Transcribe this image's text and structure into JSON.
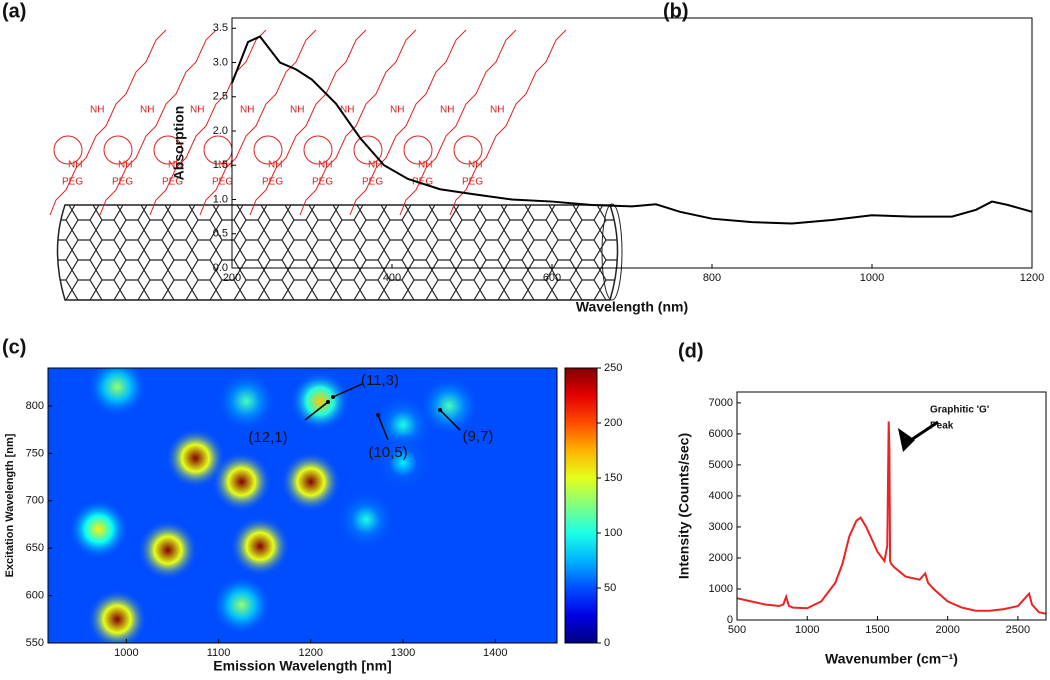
{
  "panel_labels": [
    "(a)",
    "(b)",
    "(c)",
    "(d)"
  ],
  "diagram": {
    "group_labels": [
      "NH",
      "PEG"
    ]
  },
  "chart_data": [
    {
      "type": "line",
      "x_label": "Wavelength (nm)",
      "y_label": "Absorption",
      "color": "#000000",
      "x": [
        200,
        220,
        235,
        260,
        280,
        300,
        330,
        360,
        390,
        420,
        460,
        500,
        550,
        600,
        650,
        700,
        730,
        760,
        800,
        850,
        900,
        950,
        1000,
        1050,
        1100,
        1130,
        1150,
        1170,
        1200
      ],
      "values": [
        2.7,
        3.3,
        3.38,
        3.0,
        2.9,
        2.75,
        2.4,
        1.9,
        1.5,
        1.3,
        1.15,
        1.08,
        1.0,
        0.97,
        0.92,
        0.9,
        0.93,
        0.82,
        0.72,
        0.67,
        0.65,
        0.7,
        0.77,
        0.75,
        0.75,
        0.85,
        0.97,
        0.92,
        0.82
      ],
      "xlim": [
        200,
        1200
      ],
      "xticks": [
        200,
        400,
        600,
        800,
        1000,
        1200
      ],
      "ylim": [
        0,
        3.65
      ],
      "yticks": [
        {
          "value": 0,
          "label": "0.0"
        },
        {
          "value": 0.5,
          "label": "0.5"
        },
        {
          "value": 1,
          "label": "1.0"
        },
        {
          "value": 1.5,
          "label": "1.5"
        },
        {
          "value": 2,
          "label": "2.0"
        },
        {
          "value": 2.5,
          "label": "2.5"
        },
        {
          "value": 3,
          "label": "3.0"
        },
        {
          "value": 3.5,
          "label": "3.5"
        }
      ]
    },
    {
      "type": "heatmap",
      "x_label": "Emission Wavelength [nm]",
      "y_label": "Excitation Wavelength [nm]",
      "x": [
        990,
        1045,
        1075,
        1125,
        1145,
        1200,
        1210,
        1125,
        970,
        990,
        1300,
        1350,
        1260,
        1130,
        1300
      ],
      "y": [
        575,
        648,
        745,
        720,
        652,
        720,
        805,
        590,
        670,
        820,
        780,
        800,
        680,
        805,
        740
      ],
      "values": [
        250,
        250,
        250,
        250,
        250,
        250,
        170,
        130,
        160,
        130,
        100,
        110,
        100,
        110,
        90
      ],
      "xlim": [
        915,
        1467
      ],
      "xticks": [
        1000,
        1100,
        1200,
        1300,
        1400
      ],
      "ylim": [
        550,
        840
      ],
      "yticks": [
        550,
        600,
        650,
        700,
        750,
        800
      ],
      "clim": [
        0,
        250
      ],
      "cticks": [
        0,
        50,
        100,
        150,
        200,
        250
      ],
      "annotations": [
        "(12,1)",
        "(11,3)",
        "(10,5)",
        "(9,7)"
      ]
    },
    {
      "type": "line",
      "x_label": "Wavenumber (cm⁻¹)",
      "y_label": "Intensity (Counts/sec)",
      "color": "#ee2222",
      "x": [
        500,
        600,
        700,
        800,
        830,
        850,
        870,
        900,
        1000,
        1100,
        1200,
        1250,
        1300,
        1350,
        1380,
        1420,
        1500,
        1550,
        1570,
        1580,
        1585,
        1590,
        1600,
        1620,
        1700,
        1800,
        1840,
        1860,
        1900,
        2000,
        2100,
        2200,
        2300,
        2400,
        2500,
        2550,
        2580,
        2600,
        2650,
        2700
      ],
      "values": [
        700,
        600,
        500,
        450,
        500,
        750,
        450,
        400,
        380,
        600,
        1200,
        1800,
        2700,
        3200,
        3300,
        3000,
        2200,
        1900,
        2400,
        6400,
        5500,
        1900,
        1800,
        1700,
        1400,
        1300,
        1500,
        1200,
        1000,
        600,
        400,
        300,
        300,
        350,
        450,
        700,
        850,
        500,
        250,
        200
      ],
      "xlim": [
        500,
        2700
      ],
      "xticks": [
        500,
        1000,
        1500,
        2000,
        2500
      ],
      "ylim": [
        0,
        7350
      ],
      "yticks": [
        0,
        1000,
        2000,
        3000,
        4000,
        5000,
        6000,
        7000
      ],
      "annotation": [
        "Graphitic 'G'",
        "Peak"
      ]
    }
  ]
}
